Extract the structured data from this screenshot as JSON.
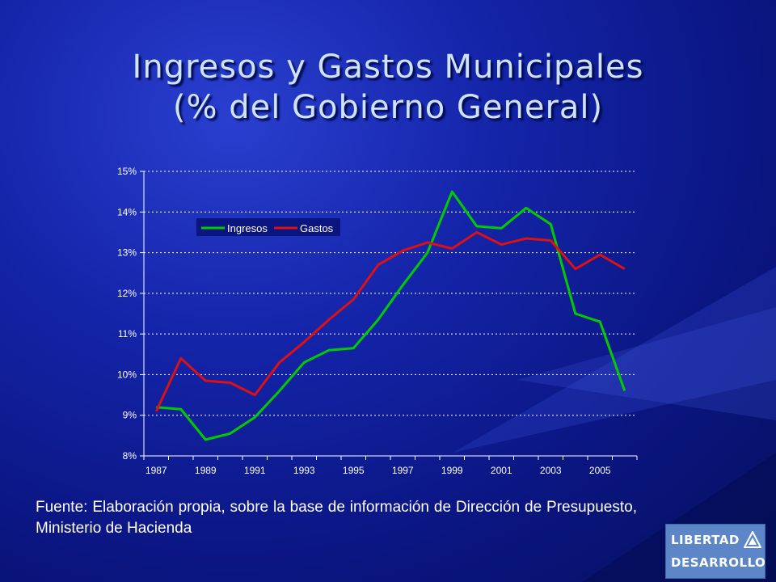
{
  "title_line1": "Ingresos y Gastos Municipales",
  "title_line2": "(% del Gobierno General)",
  "source_text": "Fuente: Elaboración propia, sobre la base de información de Dirección de Presupuesto, Ministerio de Hacienda",
  "logo": {
    "line1": "LIBERTAD",
    "line2": "DESARROLLO"
  },
  "colors": {
    "ingresos": "#00cc00",
    "gastos": "#dd1111",
    "axis_text": "#ffffff",
    "grid": "#ffffff"
  },
  "chart_data": {
    "type": "line",
    "x": [
      1987,
      1988,
      1989,
      1990,
      1991,
      1992,
      1993,
      1994,
      1995,
      1996,
      1997,
      1998,
      1999,
      2000,
      2001,
      2002,
      2003,
      2004,
      2005,
      2006
    ],
    "x_tick_labels": [
      "1987",
      "1989",
      "1991",
      "1993",
      "1995",
      "1997",
      "1999",
      "2001",
      "2003",
      "2005"
    ],
    "y_tick_labels": [
      "15%",
      "14%",
      "13%",
      "12%",
      "11%",
      "10%",
      "9%",
      "8%"
    ],
    "ylim": [
      8,
      15
    ],
    "grid": "horizontal dotted",
    "legend_position": "top-left",
    "series": [
      {
        "name": "Ingresos",
        "color": "#00cc00",
        "values": [
          9.2,
          9.15,
          8.4,
          8.55,
          8.95,
          9.6,
          10.3,
          10.6,
          10.65,
          11.35,
          12.2,
          13.0,
          14.5,
          13.65,
          13.6,
          14.1,
          13.7,
          11.5,
          11.3,
          9.6
        ]
      },
      {
        "name": "Gastos",
        "color": "#dd1111",
        "values": [
          9.1,
          10.4,
          9.85,
          9.8,
          9.5,
          10.3,
          10.8,
          11.35,
          11.85,
          12.7,
          13.05,
          13.25,
          13.1,
          13.5,
          13.2,
          13.35,
          13.3,
          12.6,
          12.95,
          12.6
        ]
      }
    ]
  }
}
